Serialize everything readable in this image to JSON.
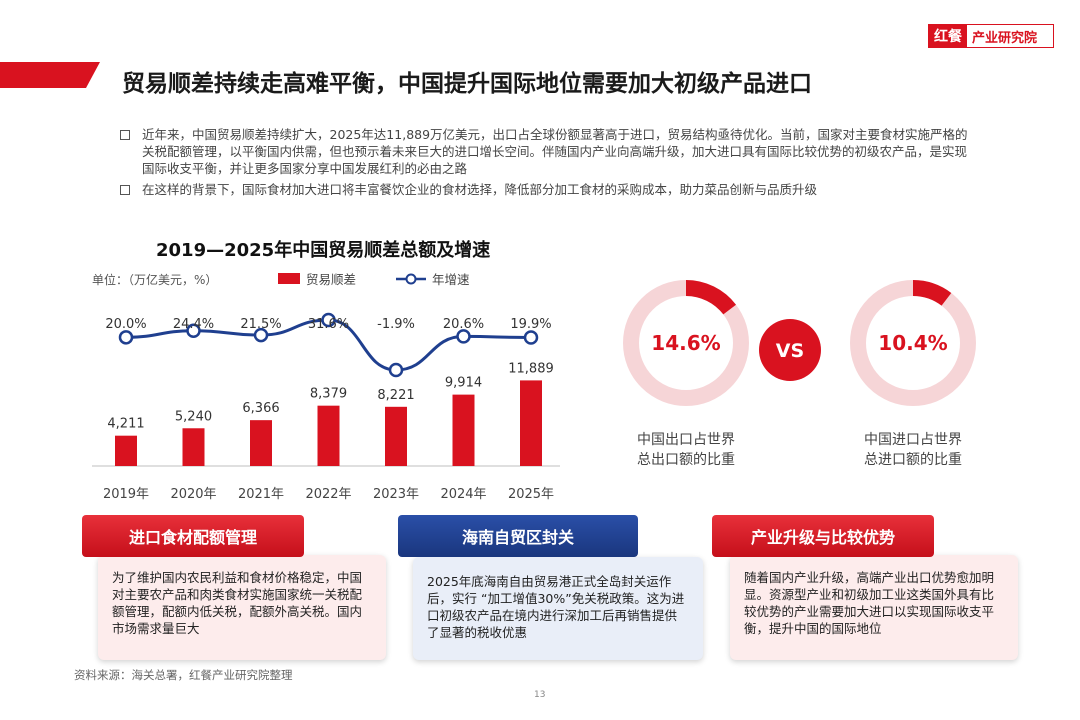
{
  "logo": {
    "mark": "红餐",
    "text": "产业研究院"
  },
  "title": "贸易顺差持续走高难平衡，中国提升国际地位需要加大初级产品进口",
  "bullets": [
    "近年来，中国贸易顺差持续扩大，2025年达11,889万亿美元，出口占全球份额显著高于进口，贸易结构亟待优化。当前，国家对主要食材实施严格的关税配额管理，以平衡国内供需，但也预示着未来巨大的进口增长空间。伴随国内产业向高端升级，加大进口具有国际比较优势的初级农产品，是实现国际收支平衡，并让更多国家分享中国发展红利的必由之路",
    "在这样的背景下，国际食材加大进口将丰富餐饮企业的食材选择，降低部分加工食材的采购成本，助力菜品创新与品质升级"
  ],
  "chart_title": "2019—2025年中国贸易顺差总额及增速",
  "chart_unit": "单位：（万亿美元，%）",
  "chart_data": {
    "type": "bar",
    "title": "2019—2025年中国贸易顺差总额及增速",
    "ylabel": "单位：（万亿美元，%）",
    "categories": [
      "2019年",
      "2020年",
      "2021年",
      "2022年",
      "2023年",
      "2024年",
      "2025年"
    ],
    "series": [
      {
        "name": "贸易顺差",
        "type": "bar",
        "values": [
          4211,
          5240,
          6366,
          8379,
          8221,
          9914,
          11889
        ],
        "labels": [
          "4,211",
          "5,240",
          "6,366",
          "8,379",
          "8,221",
          "9,914",
          "11,889"
        ]
      },
      {
        "name": "年增速",
        "type": "line",
        "values": [
          20.0,
          24.4,
          21.5,
          31.6,
          -1.9,
          20.6,
          19.9
        ],
        "labels": [
          "20.0%",
          "24.4%",
          "21.5%",
          "31.6%",
          "-1.9%",
          "20.6%",
          "19.9%"
        ]
      }
    ],
    "colors": {
      "bar": "#d9121f",
      "line": "#1f3f8f"
    },
    "legend": "top"
  },
  "donuts": {
    "left": {
      "value": 14.6,
      "label": "14.6%",
      "caption1": "中国出口占世界",
      "caption2": "总出口额的比重"
    },
    "vs": "VS",
    "right": {
      "value": 10.4,
      "label": "10.4%",
      "caption1": "中国进口占世界",
      "caption2": "总进口额的比重"
    }
  },
  "cards": [
    {
      "title": "进口食材配额管理",
      "body": "为了维护国内农民利益和食材价格稳定，中国对主要农产品和肉类食材实施国家统一关税配额管理，配额内低关税，配额外高关税。国内市场需求量巨大"
    },
    {
      "title": "海南自贸区封关",
      "body": "2025年底海南自由贸易港正式全岛封关运作后，实行 “加工增值30%”免关税政策。这为进口初级农产品在境内进行深加工后再销售提供了显著的税收优惠"
    },
    {
      "title": "产业升级与比较优势",
      "body": "随着国内产业升级，高端产业出口优势愈加明显。资源型产业和初级加工业这类国外具有比较优势的产业需要加大进口以实现国际收支平衡，提升中国的国际地位"
    }
  ],
  "source": "资料来源：海关总署，红餐产业研究院整理",
  "page_number": "13",
  "colors": {
    "accent": "#d9121f",
    "navy": "#1f3f8f",
    "donut_track": "#f6d5d7"
  }
}
